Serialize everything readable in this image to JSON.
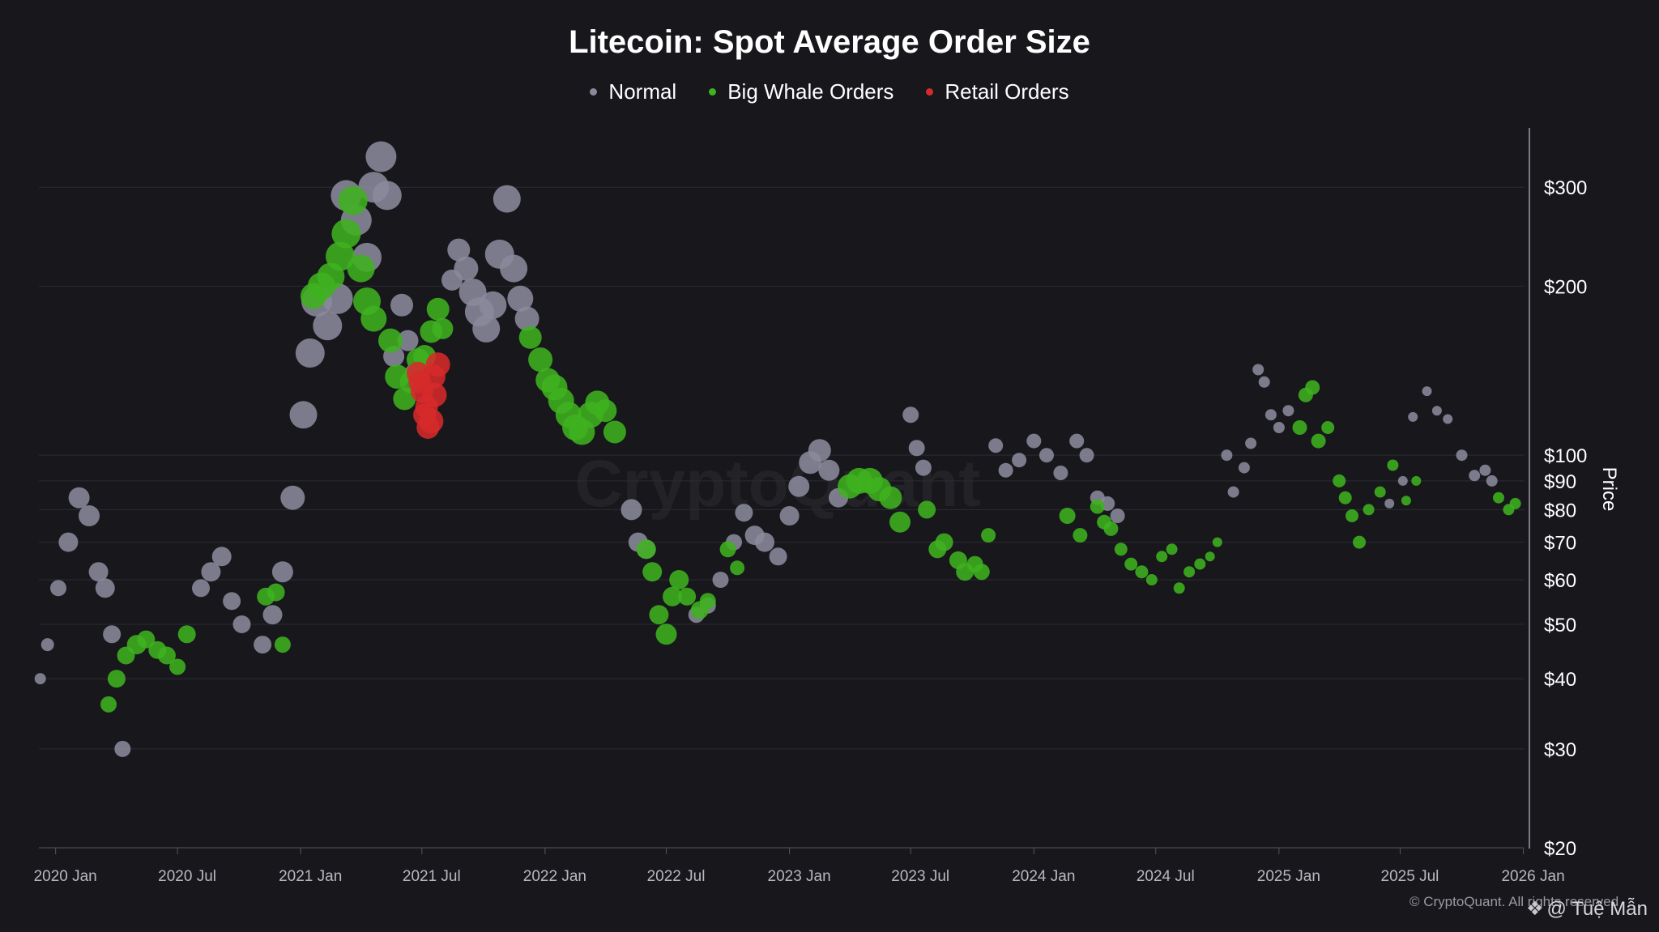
{
  "title": "Litecoin: Spot Average Order Size",
  "legend": {
    "normal": "Normal",
    "whale": "Big Whale Orders",
    "retail": "Retail Orders"
  },
  "watermark": "CryptoQuant",
  "copyright": "© CryptoQuant. All rights reserved",
  "author": "@ Tuệ Mẫn",
  "colors": {
    "background": "#17171c",
    "normal": "#8a8a9c",
    "whale": "#3fb21f",
    "retail": "#d62a2a",
    "grid": "#2b2b33",
    "axis": "#55555e"
  },
  "chart_data": {
    "type": "scatter",
    "title": "Litecoin: Spot Average Order Size",
    "ylabel": "Price",
    "y_scale": "log",
    "ylim": [
      20,
      380
    ],
    "xlim": [
      "2019-12-07",
      "2026-01-10"
    ],
    "y_ticks": [
      {
        "value": 20,
        "label": "$20"
      },
      {
        "value": 30,
        "label": "$30"
      },
      {
        "value": 40,
        "label": "$40"
      },
      {
        "value": 50,
        "label": "$50"
      },
      {
        "value": 60,
        "label": "$60"
      },
      {
        "value": 70,
        "label": "$70"
      },
      {
        "value": 80,
        "label": "$80"
      },
      {
        "value": 90,
        "label": "$90"
      },
      {
        "value": 100,
        "label": "$100"
      },
      {
        "value": 200,
        "label": "$200"
      },
      {
        "value": 300,
        "label": "$300"
      }
    ],
    "x_ticks": [
      {
        "date": "2020-01-01",
        "label": "2020 Jan"
      },
      {
        "date": "2020-07-01",
        "label": "2020 Jul"
      },
      {
        "date": "2021-01-01",
        "label": "2021 Jan"
      },
      {
        "date": "2021-07-01",
        "label": "2021 Jul"
      },
      {
        "date": "2022-01-01",
        "label": "2022 Jan"
      },
      {
        "date": "2022-07-01",
        "label": "2022 Jul"
      },
      {
        "date": "2023-01-01",
        "label": "2023 Jan"
      },
      {
        "date": "2023-07-01",
        "label": "2023 Jul"
      },
      {
        "date": "2024-01-01",
        "label": "2024 Jan"
      },
      {
        "date": "2024-07-01",
        "label": "2024 Jul"
      },
      {
        "date": "2025-01-01",
        "label": "2025 Jan"
      },
      {
        "date": "2025-07-01",
        "label": "2025 Jul"
      },
      {
        "date": "2026-01-01",
        "label": "2026 Jan"
      }
    ],
    "series": [
      {
        "name": "Normal",
        "color": "#8a8a9c",
        "x": [
          "2019-12-09",
          "2019-12-20",
          "2020-01-05",
          "2020-01-20",
          "2020-02-05",
          "2020-02-20",
          "2020-03-05",
          "2020-03-15",
          "2020-03-25",
          "2020-04-10",
          "2020-08-05",
          "2020-08-20",
          "2020-09-05",
          "2020-09-20",
          "2020-10-05",
          "2020-11-05",
          "2020-11-20",
          "2020-12-05",
          "2020-12-20",
          "2021-01-05",
          "2021-01-15",
          "2021-01-25",
          "2021-02-10",
          "2021-02-25",
          "2021-03-10",
          "2021-03-25",
          "2021-04-10",
          "2021-04-20",
          "2021-05-01",
          "2021-05-10",
          "2021-05-20",
          "2021-06-01",
          "2021-06-10",
          "2021-06-20",
          "2021-08-15",
          "2021-08-25",
          "2021-09-05",
          "2021-09-15",
          "2021-09-25",
          "2021-10-05",
          "2021-10-15",
          "2021-10-25",
          "2021-11-05",
          "2021-11-15",
          "2021-11-25",
          "2021-12-05",
          "2022-05-10",
          "2022-05-20",
          "2022-06-01",
          "2022-08-15",
          "2022-09-01",
          "2022-09-20",
          "2022-10-10",
          "2022-10-25",
          "2022-11-10",
          "2022-11-25",
          "2022-12-15",
          "2023-01-01",
          "2023-01-15",
          "2023-02-01",
          "2023-02-15",
          "2023-03-01",
          "2023-03-15",
          "2023-07-01",
          "2023-07-10",
          "2023-07-20",
          "2023-11-05",
          "2023-11-20",
          "2023-12-10",
          "2024-01-01",
          "2024-01-20",
          "2024-02-10",
          "2024-03-05",
          "2024-03-20",
          "2024-04-05",
          "2024-04-20",
          "2024-05-05",
          "2024-10-15",
          "2024-10-25",
          "2024-11-10",
          "2024-11-20",
          "2024-12-01",
          "2024-12-10",
          "2024-12-20",
          "2025-01-01",
          "2025-01-15",
          "2025-06-15",
          "2025-07-05",
          "2025-07-20",
          "2025-08-10",
          "2025-08-25",
          "2025-09-10",
          "2025-10-01",
          "2025-10-20",
          "2025-11-05",
          "2025-11-15"
        ],
        "y": [
          40,
          46,
          58,
          70,
          84,
          78,
          62,
          58,
          48,
          30,
          58,
          62,
          66,
          55,
          50,
          46,
          52,
          62,
          84,
          118,
          152,
          188,
          170,
          190,
          290,
          262,
          225,
          300,
          340,
          290,
          150,
          185,
          160,
          140,
          205,
          232,
          215,
          195,
          180,
          168,
          185,
          228,
          286,
          215,
          190,
          175,
          80,
          70,
          68,
          52,
          54,
          60,
          70,
          79,
          72,
          70,
          66,
          78,
          88,
          97,
          102,
          94,
          84,
          118,
          103,
          95,
          104,
          94,
          98,
          106,
          100,
          93,
          106,
          100,
          84,
          82,
          78,
          100,
          86,
          95,
          105,
          142,
          135,
          118,
          112,
          120,
          82,
          90,
          117,
          130,
          120,
          116,
          100,
          92,
          94,
          90
        ],
        "size": [
          7,
          8,
          10,
          12,
          13,
          13,
          12,
          12,
          11,
          10,
          11,
          12,
          12,
          11,
          11,
          11,
          12,
          13,
          15,
          17,
          18,
          19,
          18,
          19,
          19,
          19,
          18,
          19,
          19,
          18,
          13,
          14,
          13,
          12,
          13,
          14,
          15,
          17,
          18,
          17,
          17,
          18,
          17,
          17,
          16,
          15,
          13,
          12,
          12,
          10,
          10,
          10,
          10,
          11,
          12,
          12,
          11,
          12,
          13,
          14,
          14,
          13,
          12,
          10,
          10,
          10,
          9,
          9,
          9,
          9,
          9,
          9,
          9,
          9,
          9,
          9,
          9,
          7,
          7,
          7,
          7,
          7,
          7,
          7,
          7,
          7,
          6,
          6,
          6,
          6,
          6,
          6,
          7,
          7,
          7,
          7
        ]
      },
      {
        "name": "Big Whale Orders",
        "color": "#3fb21f",
        "x": [
          "2020-03-20",
          "2020-04-01",
          "2020-04-15",
          "2020-05-01",
          "2020-05-15",
          "2020-06-01",
          "2020-06-15",
          "2020-07-01",
          "2020-07-15",
          "2020-11-10",
          "2020-11-25",
          "2020-12-05",
          "2021-01-20",
          "2021-02-01",
          "2021-02-15",
          "2021-03-01",
          "2021-03-10",
          "2021-03-20",
          "2021-04-01",
          "2021-04-10",
          "2021-04-20",
          "2021-05-15",
          "2021-05-25",
          "2021-06-05",
          "2021-06-15",
          "2021-06-25",
          "2021-07-05",
          "2021-07-15",
          "2021-07-25",
          "2021-08-01",
          "2021-12-10",
          "2021-12-25",
          "2022-01-05",
          "2022-01-15",
          "2022-01-25",
          "2022-02-05",
          "2022-02-15",
          "2022-02-25",
          "2022-03-10",
          "2022-03-20",
          "2022-04-01",
          "2022-04-15",
          "2022-06-01",
          "2022-06-10",
          "2022-06-20",
          "2022-07-01",
          "2022-07-10",
          "2022-07-20",
          "2022-08-01",
          "2022-08-20",
          "2022-09-01",
          "2022-10-01",
          "2022-10-15",
          "2023-04-01",
          "2023-04-15",
          "2023-05-01",
          "2023-05-15",
          "2023-06-01",
          "2023-06-15",
          "2023-07-25",
          "2023-08-10",
          "2023-08-20",
          "2023-09-10",
          "2023-09-20",
          "2023-10-05",
          "2023-10-15",
          "2023-10-25",
          "2024-02-20",
          "2024-03-10",
          "2024-04-05",
          "2024-04-15",
          "2024-04-25",
          "2024-05-10",
          "2024-05-25",
          "2024-06-10",
          "2024-06-25",
          "2024-07-10",
          "2024-07-25",
          "2024-08-05",
          "2024-08-20",
          "2024-09-05",
          "2024-09-20",
          "2024-10-01",
          "2025-02-01",
          "2025-02-10",
          "2025-02-20",
          "2025-03-01",
          "2025-03-15",
          "2025-04-01",
          "2025-04-10",
          "2025-04-20",
          "2025-05-01",
          "2025-05-15",
          "2025-06-01",
          "2025-06-20",
          "2025-07-10",
          "2025-07-25",
          "2025-11-25",
          "2025-12-10",
          "2025-12-20"
        ],
        "y": [
          36,
          40,
          44,
          46,
          47,
          45,
          44,
          42,
          48,
          56,
          57,
          46,
          192,
          200,
          208,
          226,
          248,
          284,
          215,
          188,
          175,
          160,
          138,
          126,
          135,
          148,
          150,
          166,
          182,
          168,
          162,
          148,
          136,
          132,
          125,
          118,
          112,
          110,
          118,
          124,
          120,
          110,
          68,
          62,
          52,
          48,
          56,
          60,
          56,
          53,
          55,
          68,
          63,
          88,
          90,
          90,
          87,
          84,
          76,
          80,
          68,
          70,
          65,
          62,
          64,
          62,
          72,
          78,
          72,
          81,
          76,
          74,
          68,
          64,
          62,
          60,
          66,
          68,
          58,
          62,
          64,
          66,
          70,
          112,
          128,
          132,
          106,
          112,
          90,
          84,
          78,
          70,
          80,
          86,
          96,
          83,
          90,
          84,
          80,
          82
        ],
        "size": [
          10,
          11,
          11,
          12,
          11,
          11,
          11,
          10,
          11,
          11,
          11,
          10,
          16,
          17,
          17,
          18,
          18,
          18,
          17,
          17,
          16,
          15,
          15,
          14,
          14,
          14,
          14,
          14,
          14,
          13,
          14,
          15,
          15,
          16,
          16,
          16,
          16,
          16,
          16,
          15,
          14,
          14,
          12,
          12,
          12,
          13,
          12,
          12,
          11,
          11,
          10,
          10,
          9,
          15,
          16,
          16,
          15,
          14,
          13,
          11,
          11,
          11,
          11,
          11,
          10,
          10,
          9,
          10,
          9,
          9,
          9,
          9,
          8,
          8,
          8,
          7,
          7,
          7,
          7,
          7,
          7,
          6,
          6,
          9,
          9,
          9,
          9,
          8,
          8,
          8,
          8,
          8,
          7,
          7,
          7,
          6,
          6,
          7,
          7,
          7
        ]
      },
      {
        "name": "Retail Orders",
        "color": "#d62a2a",
        "x": [
          "2021-06-25",
          "2021-07-01",
          "2021-07-05",
          "2021-07-10",
          "2021-07-15",
          "2021-07-20",
          "2021-07-25",
          "2021-06-28",
          "2021-07-08",
          "2021-07-18"
        ],
        "y": [
          140,
          130,
          118,
          112,
          115,
          128,
          145,
          135,
          122,
          138
        ],
        "size": [
          14,
          14,
          14,
          14,
          15,
          15,
          15,
          14,
          14,
          15
        ]
      }
    ]
  }
}
